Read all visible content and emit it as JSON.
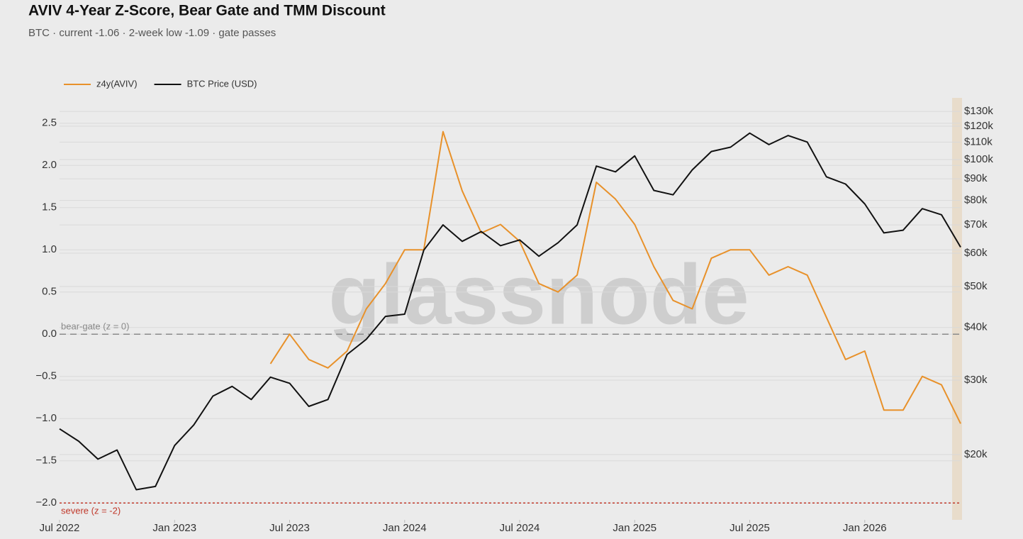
{
  "chart_data": {
    "type": "line",
    "title": "AVIV 4-Year Z-Score, Bear Gate and TMM Discount",
    "subtitle": "BTC · current -1.06 · 2-week low -1.09 · gate passes",
    "watermark": "glassnode",
    "legend": "top-left",
    "grid": true,
    "x": [
      "2022-07",
      "2022-08",
      "2022-09",
      "2022-10",
      "2022-11",
      "2022-12",
      "2023-01",
      "2023-02",
      "2023-03",
      "2023-04",
      "2023-05",
      "2023-06",
      "2023-07",
      "2023-08",
      "2023-09",
      "2023-10",
      "2023-11",
      "2023-12",
      "2024-01",
      "2024-02",
      "2024-03",
      "2024-04",
      "2024-05",
      "2024-06",
      "2024-07",
      "2024-08",
      "2024-09",
      "2024-10",
      "2024-11",
      "2024-12",
      "2025-01",
      "2025-02",
      "2025-03",
      "2025-04",
      "2025-05",
      "2025-06",
      "2025-07",
      "2025-08",
      "2025-09",
      "2025-10",
      "2025-11",
      "2025-12",
      "2026-01",
      "2026-02",
      "2026-03",
      "2026-04",
      "2026-05",
      "2026-06"
    ],
    "xlim": [
      "2022-07",
      "2026-06"
    ],
    "xticks": [
      {
        "value": "2022-07",
        "label": "Jul 2022"
      },
      {
        "value": "2023-01",
        "label": "Jan 2023"
      },
      {
        "value": "2023-07",
        "label": "Jul 2023"
      },
      {
        "value": "2024-01",
        "label": "Jan 2024"
      },
      {
        "value": "2024-07",
        "label": "Jul 2024"
      },
      {
        "value": "2025-01",
        "label": "Jan 2025"
      },
      {
        "value": "2025-07",
        "label": "Jul 2025"
      },
      {
        "value": "2026-01",
        "label": "Jan 2026"
      }
    ],
    "ylim": [
      -2.2,
      2.8
    ],
    "yticks": [
      {
        "value": -2,
        "label": "−2.0"
      },
      {
        "value": -1.5,
        "label": "−1.5"
      },
      {
        "value": -1,
        "label": "−1.0"
      },
      {
        "value": -0.5,
        "label": "−0.5"
      },
      {
        "value": 0,
        "label": "0.0"
      },
      {
        "value": 0.5,
        "label": "0.5"
      },
      {
        "value": 1,
        "label": "1.0"
      },
      {
        "value": 1.5,
        "label": "1.5"
      },
      {
        "value": 2,
        "label": "2.0"
      },
      {
        "value": 2.5,
        "label": "2.5"
      }
    ],
    "y2scale": "log",
    "y2lim": [
      14000,
      140000
    ],
    "y2ticks": [
      {
        "value": 20000,
        "label": "$20k"
      },
      {
        "value": 30000,
        "label": "$30k"
      },
      {
        "value": 40000,
        "label": "$40k"
      },
      {
        "value": 50000,
        "label": "$50k"
      },
      {
        "value": 60000,
        "label": "$60k"
      },
      {
        "value": 70000,
        "label": "$70k"
      },
      {
        "value": 80000,
        "label": "$80k"
      },
      {
        "value": 90000,
        "label": "$90k"
      },
      {
        "value": 100000,
        "label": "$100k"
      },
      {
        "value": 110000,
        "label": "$110k"
      },
      {
        "value": 120000,
        "label": "$120k"
      },
      {
        "value": 130000,
        "label": "$130k"
      }
    ],
    "reference_lines": [
      {
        "value": 0,
        "label": "bear-gate (z = 0)",
        "color": "#8a8a8a",
        "style": "dashed"
      },
      {
        "value": -2,
        "label": "severe (z = -2)",
        "color": "#c0392b",
        "style": "dotted"
      }
    ],
    "series": [
      {
        "name": "z4y(AVIV)",
        "color": "#e8912a",
        "axis": "y",
        "values": [
          null,
          null,
          null,
          null,
          null,
          null,
          null,
          null,
          null,
          null,
          null,
          -0.35,
          0.0,
          -0.3,
          -0.4,
          -0.2,
          0.3,
          0.6,
          1.0,
          1.0,
          2.4,
          1.7,
          1.2,
          1.3,
          1.1,
          0.6,
          0.5,
          0.7,
          1.8,
          1.6,
          1.3,
          0.8,
          0.4,
          0.3,
          0.9,
          1.0,
          1.0,
          0.7,
          0.8,
          0.7,
          0.2,
          -0.3,
          -0.2,
          -0.9,
          -0.9,
          -0.5,
          -0.6,
          -1.06
        ]
      },
      {
        "name": "BTC Price (USD)",
        "color": "#111111",
        "axis": "y2",
        "values": [
          23000,
          21500,
          19500,
          20500,
          16500,
          16800,
          21000,
          23500,
          27500,
          29000,
          27000,
          30500,
          29500,
          26000,
          27000,
          34500,
          37500,
          42500,
          43000,
          61000,
          70000,
          64000,
          67500,
          62500,
          64500,
          59000,
          63500,
          70000,
          96500,
          93500,
          102000,
          84500,
          82500,
          94500,
          104500,
          107000,
          115500,
          108500,
          114000,
          110000,
          91000,
          87500,
          78500,
          67000,
          68000,
          76500,
          74000,
          62000
        ]
      }
    ]
  }
}
